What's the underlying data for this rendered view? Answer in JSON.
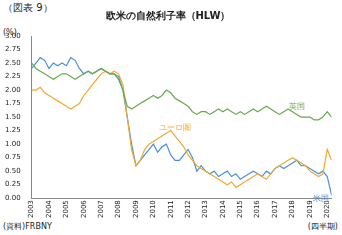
{
  "chart_data": {
    "type": "line",
    "figure_label": "（図表 9）",
    "title": "欧米の自然利子率（HLW）",
    "ylabel": "(%)",
    "xlabel": "(四半期)",
    "source": "(資料)FRBNY",
    "categories": [
      "2003",
      null,
      null,
      null,
      "2004",
      null,
      null,
      null,
      "2005",
      null,
      null,
      null,
      "2006",
      null,
      null,
      null,
      "2007",
      null,
      null,
      null,
      "2008",
      null,
      null,
      null,
      "2009",
      null,
      null,
      null,
      "2010",
      null,
      null,
      null,
      "2011",
      null,
      null,
      null,
      "2012",
      null,
      null,
      null,
      "2013",
      null,
      null,
      null,
      "2014",
      null,
      null,
      null,
      "2015",
      null,
      null,
      null,
      "2016",
      null,
      null,
      null,
      "2017",
      null,
      null,
      null,
      "2018",
      null,
      null,
      null,
      "2019",
      null,
      null,
      null,
      "2020",
      null
    ],
    "series": [
      {
        "name": "英国",
        "color": "#6aa84f",
        "values": [
          2.5,
          2.4,
          2.35,
          2.3,
          2.25,
          2.2,
          2.25,
          2.3,
          2.3,
          2.25,
          2.2,
          2.25,
          2.3,
          2.35,
          2.3,
          2.35,
          2.4,
          2.35,
          2.3,
          2.3,
          2.25,
          2.0,
          1.7,
          1.65,
          1.7,
          1.75,
          1.8,
          1.85,
          1.9,
          1.85,
          1.9,
          2.0,
          1.95,
          1.85,
          1.8,
          1.75,
          1.7,
          1.6,
          1.55,
          1.6,
          1.6,
          1.55,
          1.6,
          1.65,
          1.6,
          1.65,
          1.6,
          1.55,
          1.6,
          1.55,
          1.6,
          1.65,
          1.6,
          1.65,
          1.7,
          1.65,
          1.6,
          1.55,
          1.6,
          1.65,
          1.6,
          1.55,
          1.5,
          1.5,
          1.5,
          1.45,
          1.45,
          1.5,
          1.6,
          1.5
        ]
      },
      {
        "name": "ユーロ圏",
        "color": "#f0a830",
        "values": [
          2.0,
          2.0,
          2.05,
          1.95,
          1.9,
          1.85,
          1.8,
          1.75,
          1.7,
          1.65,
          1.7,
          1.75,
          1.9,
          2.0,
          2.1,
          2.2,
          2.3,
          2.35,
          2.3,
          2.35,
          2.3,
          2.1,
          1.5,
          0.9,
          0.6,
          0.7,
          0.9,
          1.0,
          1.05,
          1.1,
          1.15,
          1.2,
          1.25,
          1.15,
          1.05,
          0.95,
          0.8,
          0.7,
          0.6,
          0.55,
          0.5,
          0.45,
          0.4,
          0.35,
          0.3,
          0.25,
          0.3,
          0.2,
          0.25,
          0.3,
          0.35,
          0.4,
          0.45,
          0.4,
          0.35,
          0.45,
          0.55,
          0.6,
          0.65,
          0.7,
          0.75,
          0.7,
          0.65,
          0.6,
          0.5,
          0.45,
          0.4,
          0.45,
          0.9,
          0.7
        ]
      },
      {
        "name": "米国",
        "color": "#4a90d9",
        "values": [
          2.4,
          2.5,
          2.6,
          2.55,
          2.4,
          2.5,
          2.45,
          2.5,
          2.45,
          2.6,
          2.55,
          2.4,
          2.3,
          2.35,
          2.3,
          2.35,
          2.4,
          2.35,
          2.3,
          2.3,
          2.2,
          2.0,
          1.5,
          1.0,
          0.6,
          0.7,
          0.8,
          0.9,
          1.0,
          0.85,
          0.95,
          1.0,
          0.8,
          0.7,
          0.7,
          0.8,
          0.9,
          0.75,
          0.5,
          0.6,
          0.5,
          0.45,
          0.5,
          0.4,
          0.45,
          0.5,
          0.4,
          0.45,
          0.35,
          0.4,
          0.45,
          0.5,
          0.45,
          0.4,
          0.5,
          0.45,
          0.55,
          0.6,
          0.55,
          0.6,
          0.65,
          0.7,
          0.6,
          0.6,
          0.55,
          0.5,
          0.45,
          0.5,
          0.4,
          0.05
        ]
      }
    ],
    "ylim": [
      0,
      3
    ],
    "yticks": [
      {
        "value": 0,
        "label": "0.00"
      },
      {
        "value": 0.25,
        "label": "0.25"
      },
      {
        "value": 0.5,
        "label": "0.50"
      },
      {
        "value": 0.75,
        "label": "0.75"
      },
      {
        "value": 1,
        "label": "1.00"
      },
      {
        "value": 1.25,
        "label": "1.25"
      },
      {
        "value": 1.5,
        "label": "1.50"
      },
      {
        "value": 1.75,
        "label": "1.75"
      },
      {
        "value": 2,
        "label": "2.00"
      },
      {
        "value": 2.25,
        "label": "2.25"
      },
      {
        "value": 2.5,
        "label": "2.50"
      },
      {
        "value": 2.75,
        "label": "2.75"
      },
      {
        "value": 3,
        "label": "3.00"
      }
    ],
    "grid": false
  }
}
